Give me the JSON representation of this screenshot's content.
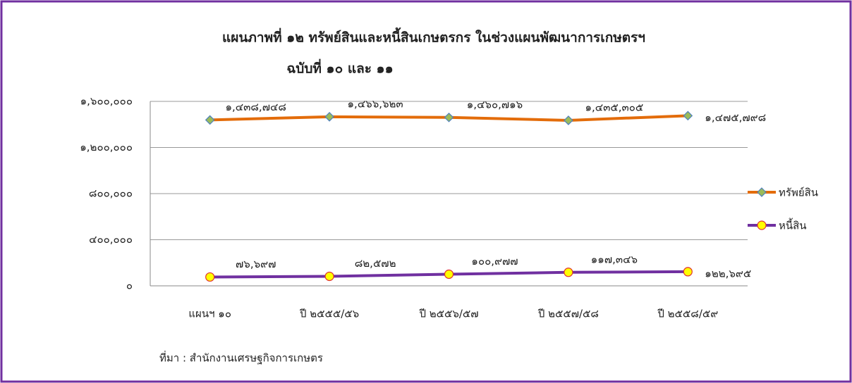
{
  "chart_data": {
    "type": "line",
    "title": [
      "แผนภาพที่ ๑๒ ทรัพย์สินและหนี้สินเกษตรกร ในช่วงแผนพัฒนาการเกษตรฯ",
      "ฉบับที่ ๑๐ และ ๑๑"
    ],
    "categories": [
      "แผนฯ ๑๐",
      "ปี ๒๕๕๕/๕๖",
      "ปี ๒๕๕๖/๕๗",
      "ปี ๒๕๕๗/๕๘",
      "ปี ๒๕๕๘/๕๙"
    ],
    "series": [
      {
        "name": "ทรัพย์สิน",
        "color": "#e36c0a",
        "marker": "diamond",
        "marker_color": "#9bbb59",
        "values": [
          1438748,
          1466623,
          1460716,
          1435305,
          1475798
        ],
        "value_labels": [
          "๑,๔๓๘,๗๔๘",
          "๑,๔๖๖,๖๒๓",
          "๑,๔๖๐,๗๑๖",
          "๑,๔๓๕,๓๐๕",
          "๑,๔๗๕,๗๙๘"
        ]
      },
      {
        "name": "หนี้สิน",
        "color": "#7030a0",
        "marker": "circle",
        "marker_color": "#ffff00",
        "values": [
          76697,
          82572,
          100977,
          117346,
          122695
        ],
        "value_labels": [
          "๗๖,๖๙๗",
          "๘๒,๕๗๒",
          "๑๐๐,๙๗๗",
          "๑๑๗,๓๔๖",
          "๑๒๒,๖๙๕"
        ]
      }
    ],
    "ylim": [
      0,
      1600000
    ],
    "yticks": [
      {
        "value": 0,
        "label": "๐"
      },
      {
        "value": 400000,
        "label": "๔๐๐,๐๐๐"
      },
      {
        "value": 800000,
        "label": "๘๐๐,๐๐๐"
      },
      {
        "value": 1200000,
        "label": "๑,๒๐๐,๐๐๐"
      },
      {
        "value": 1600000,
        "label": "๑,๖๐๐,๐๐๐"
      }
    ],
    "grid": true,
    "legend": "right",
    "source": "ที่มา : สำนักงานเศรษฐกิจการเกษตร"
  }
}
